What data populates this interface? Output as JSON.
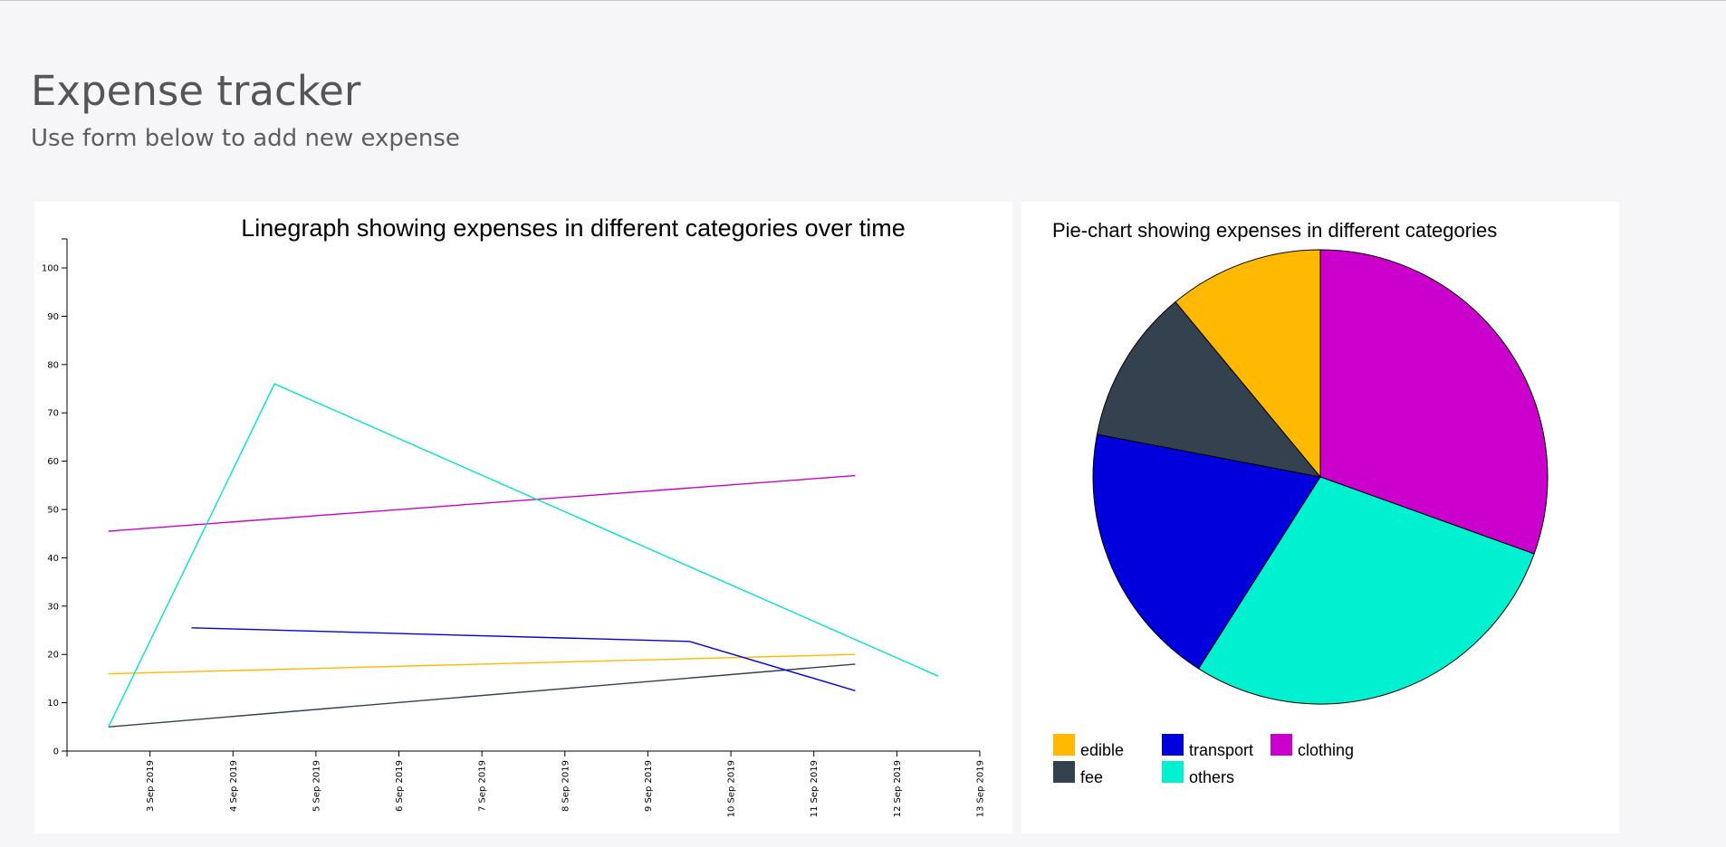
{
  "header": {
    "title": "Expense tracker",
    "subtitle": "Use form below to add new expense"
  },
  "chart_data": [
    {
      "type": "line",
      "title": "Linegraph showing expenses in different categories over time",
      "xlabel": "",
      "ylabel": "",
      "x_ticks": [
        "3 Sep 2019",
        "4 Sep 2019",
        "5 Sep 2019",
        "6 Sep 2019",
        "7 Sep 2019",
        "8 Sep 2019",
        "9 Sep 2019",
        "10 Sep 2019",
        "11 Sep 2019",
        "12 Sep 2019",
        "13 Sep 2019"
      ],
      "xlim": [
        "2019-09-02",
        "2019-09-13"
      ],
      "ylim": [
        0,
        106
      ],
      "y_ticks": [
        0,
        10,
        20,
        30,
        40,
        50,
        60,
        70,
        80,
        90,
        100
      ],
      "grid": false,
      "series": [
        {
          "key": "edible",
          "color": "#FFB900",
          "points": [
            [
              "2019-09-02T12:00",
              16
            ],
            [
              "2019-09-11T12:00",
              20
            ]
          ]
        },
        {
          "key": "fee",
          "color": "#34414F",
          "points": [
            [
              "2019-09-02T12:00",
              5
            ],
            [
              "2019-09-11T12:00",
              18
            ]
          ]
        },
        {
          "key": "transport",
          "color": "#0000DC",
          "points": [
            [
              "2019-09-03T12:00",
              25.5
            ],
            [
              "2019-09-09T12:00",
              22.7
            ],
            [
              "2019-09-11T12:00",
              12.5
            ]
          ]
        },
        {
          "key": "clothing",
          "color": "#CC00CC",
          "points": [
            [
              "2019-09-02T12:00",
              45.5
            ],
            [
              "2019-09-11T12:00",
              57
            ]
          ]
        },
        {
          "key": "others",
          "color": "#00E5C8",
          "points": [
            [
              "2019-09-02T12:00",
              5
            ],
            [
              "2019-09-04T12:00",
              76
            ],
            [
              "2019-09-12T12:00",
              15.5
            ]
          ]
        }
      ]
    },
    {
      "type": "pie",
      "title": "Pie-chart showing expenses in different categories",
      "slices": [
        {
          "label": "clothing",
          "value": 30.5,
          "color": "#CC00CC"
        },
        {
          "label": "others",
          "value": 28.5,
          "color": "#00F0D0"
        },
        {
          "label": "transport",
          "value": 19,
          "color": "#0000DC"
        },
        {
          "label": "fee",
          "value": 11,
          "color": "#34414F"
        },
        {
          "label": "edible",
          "value": 11,
          "color": "#FFB900"
        }
      ],
      "legend": [
        {
          "label": "edible",
          "color": "#FFB900"
        },
        {
          "label": "transport",
          "color": "#0000DC"
        },
        {
          "label": "clothing",
          "color": "#CC00CC"
        },
        {
          "label": "fee",
          "color": "#34414F"
        },
        {
          "label": "others",
          "color": "#00F0D0"
        }
      ],
      "legend_position": "bottom-left"
    }
  ]
}
